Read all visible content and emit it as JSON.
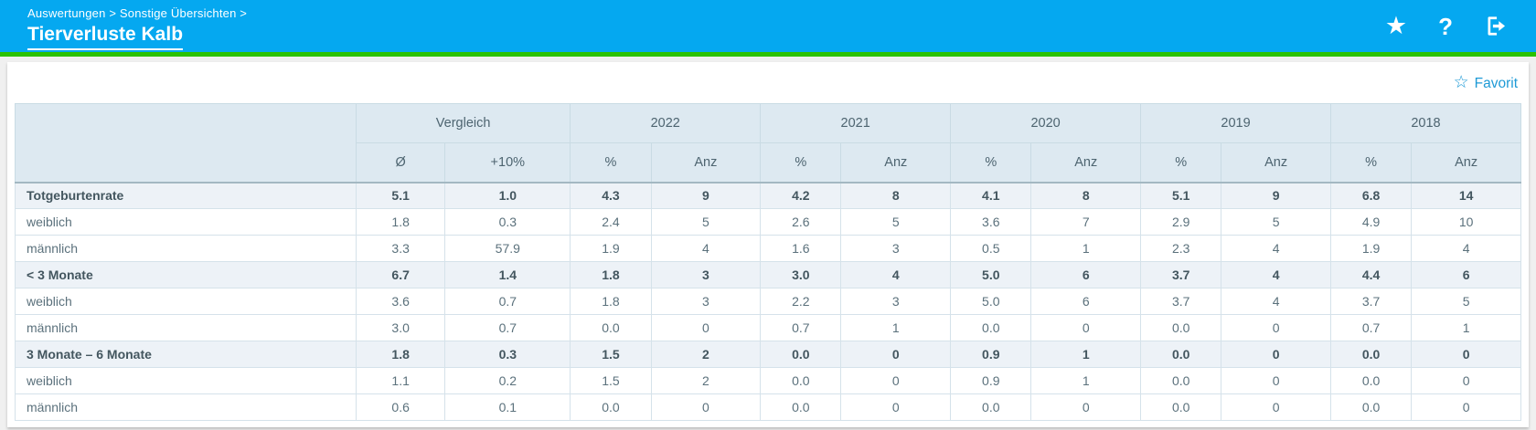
{
  "header": {
    "breadcrumb": "Auswertungen > Sonstige Übersichten >",
    "title": "Tierverluste Kalb",
    "icons": {
      "favorite_star": "★",
      "help": "?"
    }
  },
  "toolbar": {
    "favorit_icon": "☆",
    "favorit_label": "Favorit"
  },
  "table": {
    "col_groups": [
      {
        "label": "Vergleich",
        "sub": [
          "Ø",
          "+10%"
        ]
      },
      {
        "label": "2022",
        "sub": [
          "%",
          "Anz"
        ]
      },
      {
        "label": "2021",
        "sub": [
          "%",
          "Anz"
        ]
      },
      {
        "label": "2020",
        "sub": [
          "%",
          "Anz"
        ]
      },
      {
        "label": "2019",
        "sub": [
          "%",
          "Anz"
        ]
      },
      {
        "label": "2018",
        "sub": [
          "%",
          "Anz"
        ]
      }
    ],
    "rows": [
      {
        "label": "Totgeburtenrate",
        "bold": true,
        "values": [
          "5.1",
          "1.0",
          "4.3",
          "9",
          "4.2",
          "8",
          "4.1",
          "8",
          "5.1",
          "9",
          "6.8",
          "14"
        ]
      },
      {
        "label": "weiblich",
        "bold": false,
        "values": [
          "1.8",
          "0.3",
          "2.4",
          "5",
          "2.6",
          "5",
          "3.6",
          "7",
          "2.9",
          "5",
          "4.9",
          "10"
        ]
      },
      {
        "label": "männlich",
        "bold": false,
        "values": [
          "3.3",
          "57.9",
          "1.9",
          "4",
          "1.6",
          "3",
          "0.5",
          "1",
          "2.3",
          "4",
          "1.9",
          "4"
        ]
      },
      {
        "label": "< 3 Monate",
        "bold": true,
        "values": [
          "6.7",
          "1.4",
          "1.8",
          "3",
          "3.0",
          "4",
          "5.0",
          "6",
          "3.7",
          "4",
          "4.4",
          "6"
        ]
      },
      {
        "label": "weiblich",
        "bold": false,
        "values": [
          "3.6",
          "0.7",
          "1.8",
          "3",
          "2.2",
          "3",
          "5.0",
          "6",
          "3.7",
          "4",
          "3.7",
          "5"
        ]
      },
      {
        "label": "männlich",
        "bold": false,
        "values": [
          "3.0",
          "0.7",
          "0.0",
          "0",
          "0.7",
          "1",
          "0.0",
          "0",
          "0.0",
          "0",
          "0.7",
          "1"
        ]
      },
      {
        "label": "3 Monate – 6 Monate",
        "bold": true,
        "values": [
          "1.8",
          "0.3",
          "1.5",
          "2",
          "0.0",
          "0",
          "0.9",
          "1",
          "0.0",
          "0",
          "0.0",
          "0"
        ]
      },
      {
        "label": "weiblich",
        "bold": false,
        "values": [
          "1.1",
          "0.2",
          "1.5",
          "2",
          "0.0",
          "0",
          "0.9",
          "1",
          "0.0",
          "0",
          "0.0",
          "0"
        ]
      },
      {
        "label": "männlich",
        "bold": false,
        "values": [
          "0.6",
          "0.1",
          "0.0",
          "0",
          "0.0",
          "0",
          "0.0",
          "0",
          "0.0",
          "0",
          "0.0",
          "0"
        ]
      }
    ]
  },
  "colors": {
    "header_blue": "#05a8f0",
    "green_bar": "#2cc102",
    "table_header_bg": "#dde9f1",
    "section_row_bg": "#edf2f7",
    "link_blue": "#1e9ad6",
    "text": "#5b717c",
    "text_bold": "#43565f"
  }
}
